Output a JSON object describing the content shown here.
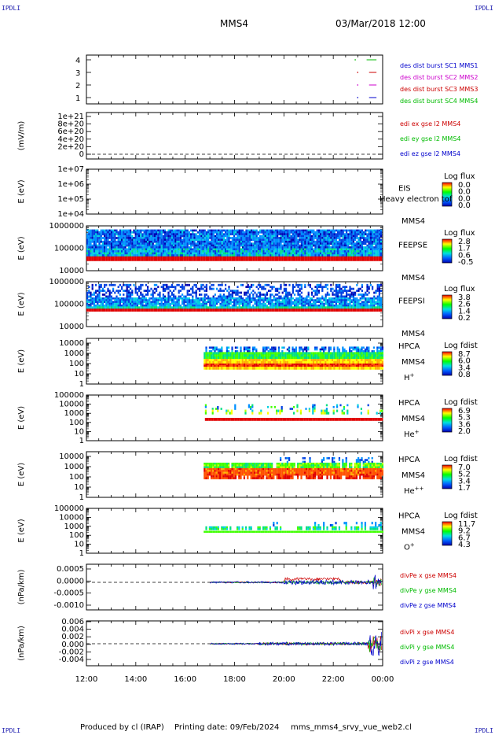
{
  "header": {
    "corner_tl": "IPDLI",
    "corner_tr": "IPDLI",
    "corner_bl": "IPDLI",
    "corner_br": "IPDLI",
    "spacecraft": "MMS4",
    "datetime": "03/Mar/2018 12:00"
  },
  "footer": {
    "produced_by": "Produced by cl (IRAP)",
    "printing_date": "Printing date: 09/Feb/2024",
    "filename": "mms_mms4_srvy_vue_web2.cl"
  },
  "chart_data": {
    "type": "multi-panel time series",
    "x_ticks": [
      "12:00",
      "14:00",
      "16:00",
      "18:00",
      "20:00",
      "22:00",
      "00:00"
    ],
    "x_range_hours": [
      12,
      24
    ],
    "panels": [
      {
        "id": "burst",
        "ylabel": "",
        "yticks": [
          "4",
          "3",
          "2",
          "1"
        ],
        "legend": [
          {
            "text": "des dist burst SC1 MMS1",
            "color": "#0000cc"
          },
          {
            "text": "des dist burst SC2 MMS2",
            "color": "#cc00cc"
          },
          {
            "text": "des dist burst SC3 MMS3",
            "color": "#cc0000"
          },
          {
            "text": "des dist burst SC4 MMS4",
            "color": "#00bb00"
          }
        ],
        "bursts": [
          {
            "sc": 4,
            "start": 23.35,
            "end": 23.75,
            "color": "#00bb00"
          },
          {
            "sc": 3,
            "start": 23.45,
            "end": 23.75,
            "color": "#cc0000"
          },
          {
            "sc": 2,
            "start": 23.45,
            "end": 23.75,
            "color": "#cc00cc"
          },
          {
            "sc": 1,
            "start": 23.45,
            "end": 23.75,
            "color": "#0000cc"
          }
        ]
      },
      {
        "id": "edi",
        "ylabel": "(mV/m)",
        "yticks": [
          "1e+21",
          "8e+20",
          "6e+20",
          "4e+20",
          "2e+20",
          "0"
        ],
        "legend": [
          {
            "text": "edi ex gse l2 MMS4",
            "color": "#cc0000"
          },
          {
            "text": "edi ey gse l2 MMS4",
            "color": "#00bb00"
          },
          {
            "text": "edi ez gse l2 MMS4",
            "color": "#0000cc"
          }
        ]
      },
      {
        "id": "eis",
        "ylabel": "E (eV)",
        "yticks": [
          "1e+07",
          "1e+06",
          "1e+05",
          "1e+04"
        ],
        "instrument": "EIS",
        "species": "Heavy electron tof",
        "sc": "MMS4",
        "cbar_title": "Log flux",
        "cbar_ticks": [
          "0.0",
          "0.0",
          "0.0",
          "0.0"
        ]
      },
      {
        "id": "feepse",
        "ylabel": "E (eV)",
        "yticks": [
          "1000000",
          "100000",
          "10000"
        ],
        "instrument": "FEEPSE",
        "sc": "MMS4",
        "cbar_title": "Log flux",
        "cbar_ticks": [
          "2.8",
          "1.7",
          "0.6",
          "-0.5"
        ]
      },
      {
        "id": "feepsi",
        "ylabel": "E (eV)",
        "yticks": [
          "1000000",
          "100000",
          "10000"
        ],
        "instrument": "FEEPSI",
        "sc": "MMS4",
        "cbar_title": "Log flux",
        "cbar_ticks": [
          "3.8",
          "2.6",
          "1.4",
          "0.2"
        ]
      },
      {
        "id": "hpca_h",
        "ylabel": "E (eV)",
        "yticks": [
          "10000",
          "1000",
          "100",
          "10",
          "1"
        ],
        "instrument": "HPCA",
        "sc": "MMS4",
        "species": "H",
        "species_sup": "+",
        "cbar_title": "Log fdist",
        "cbar_ticks": [
          "8.7",
          "6.0",
          "3.4",
          "0.8"
        ]
      },
      {
        "id": "hpca_he",
        "ylabel": "E (eV)",
        "yticks": [
          "100000",
          "10000",
          "1000",
          "100",
          "10",
          "1"
        ],
        "instrument": "HPCA",
        "sc": "MMS4",
        "species": "He",
        "species_sup": "+",
        "cbar_title": "Log fdist",
        "cbar_ticks": [
          "6.9",
          "5.3",
          "3.6",
          "2.0"
        ]
      },
      {
        "id": "hpca_he2",
        "ylabel": "E (eV)",
        "yticks": [
          "10000",
          "1000",
          "100",
          "10",
          "1"
        ],
        "instrument": "HPCA",
        "sc": "MMS4",
        "species": "He",
        "species_sup": "++",
        "cbar_title": "Log fdist",
        "cbar_ticks": [
          "7.0",
          "5.2",
          "3.4",
          "1.7"
        ]
      },
      {
        "id": "hpca_o",
        "ylabel": "E (eV)",
        "yticks": [
          "100000",
          "10000",
          "1000",
          "100",
          "10",
          "1"
        ],
        "instrument": "HPCA",
        "sc": "MMS4",
        "species": "O",
        "species_sup": "+",
        "cbar_title": "Log fdist",
        "cbar_ticks": [
          "11.7",
          "9.2",
          "6.7",
          "4.3"
        ]
      },
      {
        "id": "divpe",
        "ylabel": "(nPa/km)",
        "yticks": [
          "0.0005",
          "0.0000",
          "-0.0005",
          "-0.0010"
        ],
        "legend": [
          {
            "text": "divPe x gse MMS4",
            "color": "#cc0000"
          },
          {
            "text": "divPe y gse MMS4",
            "color": "#00bb00"
          },
          {
            "text": "divPe z gse MMS4",
            "color": "#0000cc"
          }
        ]
      },
      {
        "id": "divpi",
        "ylabel": "(nPa/km)",
        "yticks": [
          "0.006",
          "0.004",
          "0.002",
          "0.000",
          "-0.002",
          "-0.004"
        ],
        "legend": [
          {
            "text": "divPi x gse MMS4",
            "color": "#cc0000"
          },
          {
            "text": "divPi y gse MMS4",
            "color": "#00bb00"
          },
          {
            "text": "divPi z gse MMS4",
            "color": "#0000cc"
          }
        ]
      }
    ]
  }
}
